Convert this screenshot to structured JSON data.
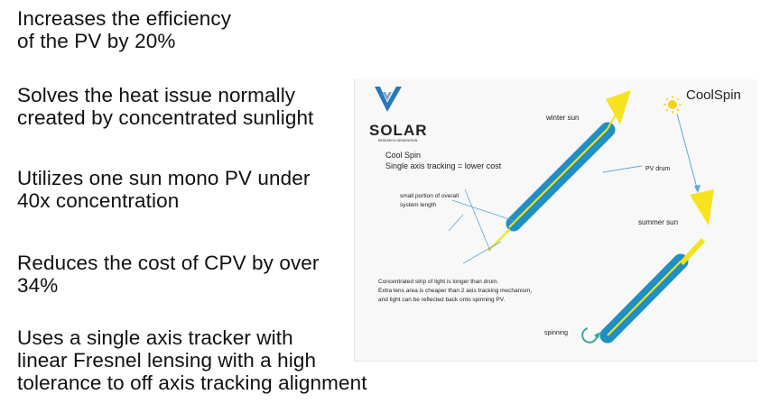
{
  "bullets": [
    {
      "line1": "Increases the efficiency",
      "line2": "of the PV by 20%",
      "line3": ""
    },
    {
      "line1": "Solves the heat issue normally",
      "line2": "created by concentrated sunlight",
      "line3": ""
    },
    {
      "line1": "Utilizes one sun mono PV under",
      "line2": "40x concentration",
      "line3": ""
    },
    {
      "line1": "Reduces the cost of CPV by over",
      "line2": "34%",
      "line3": ""
    },
    {
      "line1": "Uses a single axis tracker with",
      "line2": "linear Fresnel lensing with a high",
      "line3": "tolerance to off axis tracking alignment"
    }
  ],
  "figure": {
    "logo_text": "SOLAR",
    "logo_subtext": "RESEARCH GENERATION",
    "brand": "CoolSpin",
    "title_line1": "Cool Spin",
    "title_line2": "Single axis tracking = lower cost",
    "label_winter": "winter sun",
    "label_summer": "summer sun",
    "label_drum": "PV drum",
    "label_portion_1": "small portion of overall",
    "label_portion_2": "system length",
    "label_strip_1": "Concentrated strip of light is longer than drum.",
    "label_strip_2": "Extra lens area is cheaper than 2 axis tracking mechanism,",
    "label_strip_3": "and light can be reflected back onto spinning PV.",
    "label_spinning": "spinning",
    "colors": {
      "drum": "#1f8fc4",
      "strip": "#f2e21a",
      "lens": "#f7e21e",
      "sun": "#f4d21c",
      "logo": "#2a77b8",
      "brand": "#2a8ac0",
      "spin_arrow": "#3aa79c",
      "leader": "#5aa9d8"
    }
  }
}
